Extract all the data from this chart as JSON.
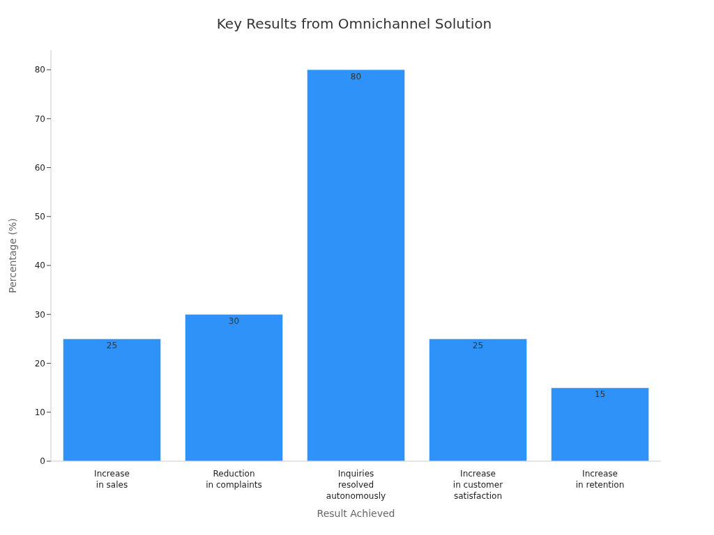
{
  "chart_data": {
    "type": "bar",
    "title": "Key Results from Omnichannel Solution",
    "xlabel": "Result Achieved",
    "ylabel": "Percentage (%)",
    "categories": [
      "Increase in sales",
      "Reduction in complaints",
      "Inquiries resolved autonomously",
      "Increase in customer satisfaction",
      "Increase in retention"
    ],
    "values": [
      25,
      30,
      80,
      25,
      15
    ],
    "color": "#2f92f8",
    "ylim": [
      0,
      84
    ],
    "yticks": [
      0,
      10,
      20,
      30,
      40,
      50,
      60,
      70,
      80
    ],
    "grid": false,
    "data_labels": true
  }
}
